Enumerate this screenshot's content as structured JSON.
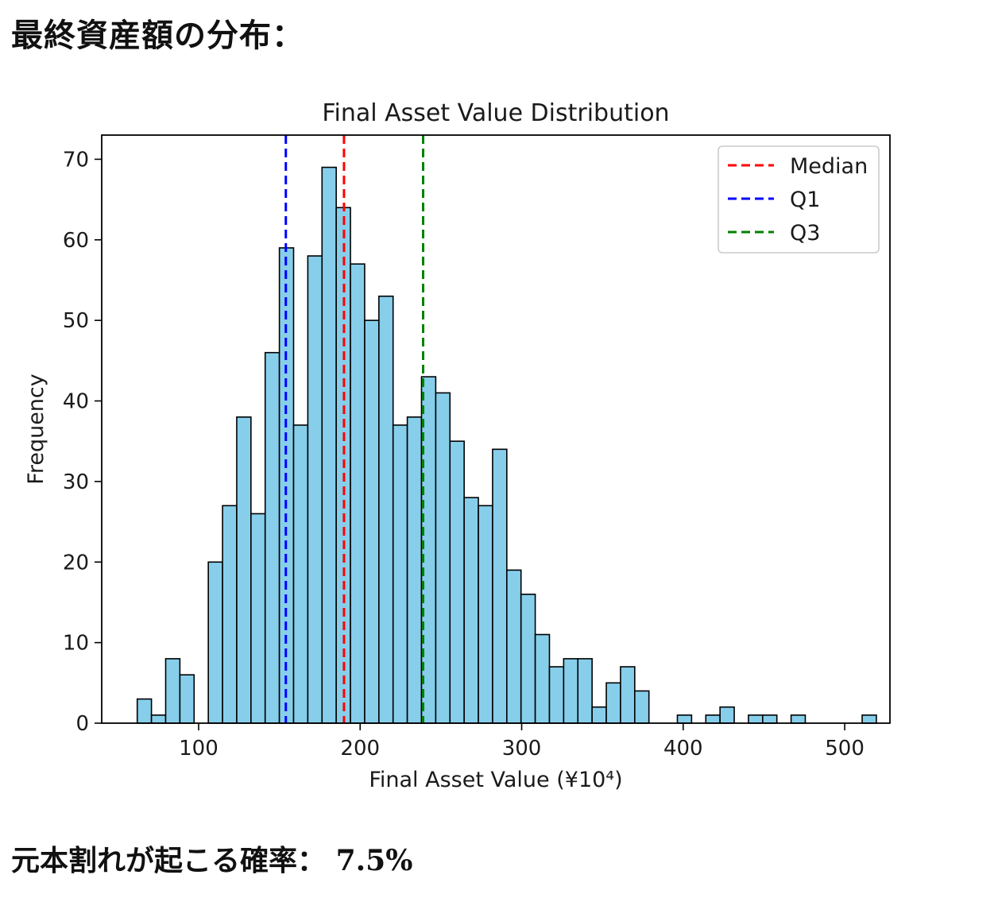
{
  "page": {
    "heading": "最終資産額の分布：",
    "result_label": "元本割れが起こる確率：",
    "result_value": "7.5%"
  },
  "chart_data": {
    "type": "bar",
    "title": "Final Asset Value Distribution",
    "xlabel": "Final Asset Value (¥10⁴)",
    "ylabel": "Frequency",
    "xlim": [
      40,
      528
    ],
    "ylim": [
      0,
      73
    ],
    "xticks": [
      100,
      200,
      300,
      400,
      500
    ],
    "yticks": [
      0,
      10,
      20,
      30,
      40,
      50,
      60,
      70
    ],
    "bin_start": 62,
    "bin_width": 8.8,
    "values": [
      3,
      1,
      8,
      6,
      0,
      20,
      27,
      38,
      26,
      46,
      59,
      37,
      58,
      69,
      64,
      57,
      50,
      53,
      37,
      38,
      43,
      41,
      35,
      28,
      27,
      34,
      19,
      16,
      11,
      7,
      8,
      8,
      2,
      5,
      7,
      4,
      0,
      0,
      1,
      0,
      1,
      2,
      0,
      1,
      1,
      0,
      1,
      0,
      0,
      0,
      0,
      1
    ],
    "bar_color": "#87ceeb",
    "bar_edge_color": "#000000",
    "vlines": [
      {
        "name": "Median",
        "x": 190,
        "color": "#ff0000"
      },
      {
        "name": "Q1",
        "x": 154,
        "color": "#0000ff"
      },
      {
        "name": "Q3",
        "x": 239,
        "color": "#008000"
      }
    ],
    "legend_position": "top-right",
    "grid": false
  }
}
